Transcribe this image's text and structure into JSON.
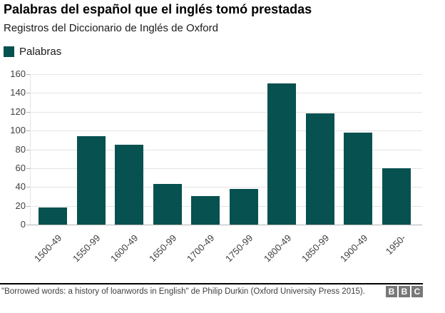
{
  "header": {
    "title": "Palabras del español que el inglés tomó prestadas",
    "subtitle": "Registros del Diccionario de Inglés de Oxford"
  },
  "legend": {
    "label": "Palabras"
  },
  "chart_data": {
    "type": "bar",
    "title": "Palabras del español que el inglés tomó prestadas",
    "subtitle": "Registros del Diccionario de Inglés de Oxford",
    "series_name": "Palabras",
    "categories": [
      "1500-49",
      "1550-99",
      "1600-49",
      "1650-99",
      "1700-49",
      "1750-99",
      "1800-49",
      "1850-99",
      "1900-49",
      "1950-"
    ],
    "values": [
      18,
      94,
      85,
      43,
      30,
      38,
      150,
      118,
      98,
      60
    ],
    "xlabel": "",
    "ylabel": "",
    "ylim": [
      0,
      160
    ],
    "yticks": [
      0,
      20,
      40,
      60,
      80,
      100,
      120,
      140,
      160
    ],
    "grid": "horizontal",
    "legend_position": "top-left",
    "bar_color": "#075150"
  },
  "colors": {
    "bar": "#075150",
    "gridline": "#e4e4e4",
    "axis_baseline": "#b3b3b3",
    "tick_text": "#404040",
    "footer_rule": "#000000",
    "bbc_block": "#787878"
  },
  "footer": {
    "source": "\"Borrowed words: a history of loanwords in English\" de Philip Durkin (Oxford University Press 2015).",
    "logo_letters": [
      "B",
      "B",
      "C"
    ]
  }
}
